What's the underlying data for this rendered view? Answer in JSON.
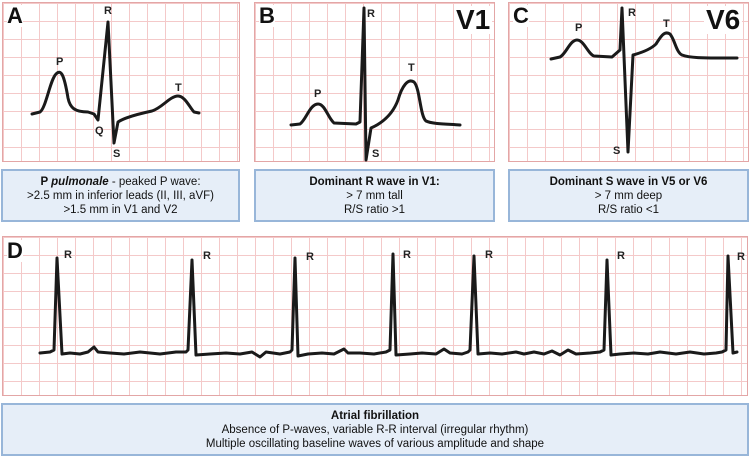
{
  "panels": {
    "a": {
      "letter": "A",
      "waves": {
        "p": "P",
        "q": "Q",
        "r": "R",
        "s": "S",
        "t": "T"
      },
      "caption": {
        "title_bold": "P ",
        "title_italic": "pulmonale",
        "title_rest": " - peaked P wave:",
        "line1": ">2.5 mm in inferior leads (II, III, aVF)",
        "line2": ">1.5 mm in V1 and V2"
      }
    },
    "b": {
      "letter": "B",
      "lead": "V1",
      "waves": {
        "p": "P",
        "r": "R",
        "s": "S",
        "t": "T"
      },
      "caption": {
        "title": "Dominant R wave in V1:",
        "line1": "> 7 mm tall",
        "line2": "R/S ratio >1"
      }
    },
    "c": {
      "letter": "C",
      "lead": "V6",
      "waves": {
        "p": "P",
        "r": "R",
        "s": "S",
        "t": "T"
      },
      "caption": {
        "title": "Dominant S wave in V5 or V6",
        "line1": "> 7 mm deep",
        "line2": "R/S ratio <1"
      }
    },
    "d": {
      "letter": "D",
      "r_label": "R",
      "caption": {
        "title": "Atrial fibrillation",
        "line1": "Absence of P-waves, variable R-R interval (irregular rhythm)",
        "line2": "Multiple oscillating baseline waves of various amplitude and shape"
      }
    }
  },
  "colors": {
    "grid_line": "#f4c9c9",
    "grid_border": "#e3a6a6",
    "trace": "#1a1a1a",
    "caption_fill": "#e6eef8",
    "caption_border": "#98b6d9"
  }
}
